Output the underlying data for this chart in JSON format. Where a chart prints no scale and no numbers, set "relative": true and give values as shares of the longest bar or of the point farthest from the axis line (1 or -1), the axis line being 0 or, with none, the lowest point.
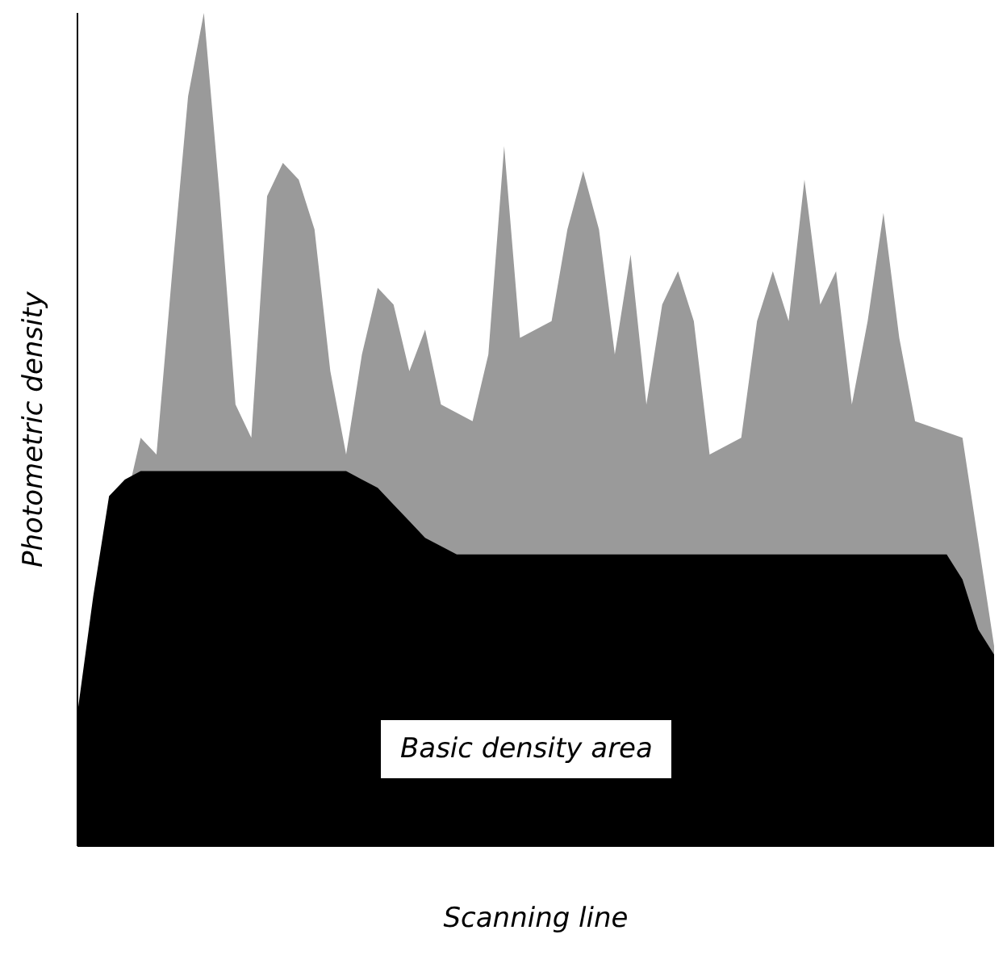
{
  "chart_data": {
    "type": "area",
    "relative": true,
    "xlabel": "Scanning line",
    "ylabel": "Photometric density",
    "categories": [
      null,
      null,
      null,
      null,
      null,
      null,
      null,
      null,
      null,
      null,
      null,
      null,
      null,
      null,
      null,
      null,
      null,
      null,
      null,
      null,
      null,
      null,
      null,
      null,
      null,
      null,
      null,
      null,
      null,
      null,
      null,
      null,
      null,
      null,
      null,
      null,
      null,
      null,
      null,
      null,
      null,
      null,
      null,
      null,
      null,
      null,
      null,
      null,
      null,
      null,
      null,
      null,
      null,
      null,
      null,
      null,
      null,
      null,
      null
    ],
    "series": [
      {
        "color": "#9a9a9a",
        "values": [
          0.16,
          null,
          null,
          null,
          0.49,
          0.47,
          0.69,
          0.9,
          1.0,
          0.78,
          0.53,
          0.49,
          0.78,
          0.82,
          0.8,
          0.74,
          0.57,
          0.47,
          0.59,
          0.67,
          0.65,
          0.57,
          0.62,
          0.53,
          null,
          0.51,
          0.59,
          0.84,
          0.61,
          null,
          0.63,
          0.74,
          0.81,
          0.74,
          0.59,
          0.71,
          0.53,
          0.65,
          0.69,
          0.63,
          0.47,
          null,
          0.49,
          0.63,
          0.69,
          0.63,
          0.8,
          0.65,
          0.69,
          0.53,
          0.63,
          0.76,
          0.61,
          0.51,
          null,
          null,
          0.49,
          null,
          0.24
        ]
      },
      {
        "color": "#000000",
        "values": [
          0.16,
          0.3,
          0.42,
          0.44,
          0.45,
          0.45,
          0.45,
          0.45,
          0.45,
          0.45,
          0.45,
          0.45,
          0.45,
          0.45,
          0.45,
          0.45,
          0.45,
          0.45,
          0.44,
          0.43,
          0.41,
          0.39,
          0.37,
          0.36,
          0.35,
          0.35,
          0.35,
          0.35,
          0.35,
          0.35,
          0.35,
          0.35,
          0.35,
          0.35,
          0.35,
          0.35,
          0.35,
          0.35,
          0.35,
          0.35,
          0.35,
          0.35,
          0.35,
          0.35,
          0.35,
          0.35,
          0.35,
          0.35,
          0.35,
          0.35,
          0.35,
          0.35,
          0.35,
          0.35,
          0.35,
          0.35,
          0.32,
          0.26,
          0.23
        ]
      }
    ],
    "annotations": [
      "Basic density area"
    ]
  }
}
